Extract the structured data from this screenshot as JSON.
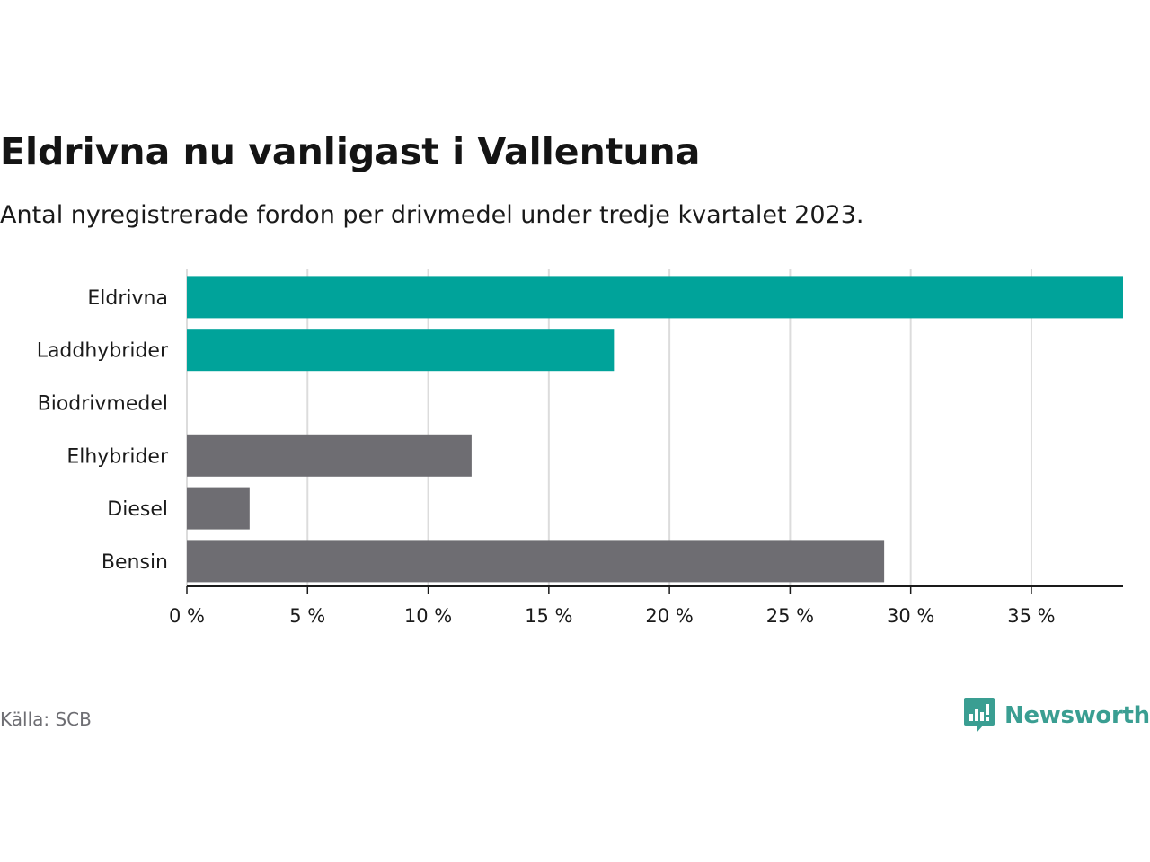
{
  "title": "Eldrivna nu vanligast i Vallentuna",
  "subtitle": "Antal nyregistrerade fordon per drivmedel under tredje kvartalet 2023.",
  "source": "Källa: SCB",
  "brand": "Newsworthy",
  "colors": {
    "highlight": "#00a39a",
    "muted": "#6e6d72",
    "grid": "#dcdcdc",
    "axis": "#1a1a1a",
    "brand": "#3a9e92"
  },
  "chart_data": {
    "type": "bar",
    "orientation": "horizontal",
    "categories": [
      "Eldrivna",
      "Laddhybrider",
      "Biodrivmedel",
      "Elhybrider",
      "Diesel",
      "Bensin"
    ],
    "values": [
      38.8,
      17.7,
      0,
      11.8,
      2.6,
      28.9
    ],
    "highlight": [
      true,
      true,
      true,
      false,
      false,
      false
    ],
    "xlim": [
      0,
      38.8
    ],
    "xticks": [
      0,
      5,
      10,
      15,
      20,
      25,
      30,
      35
    ],
    "xtick_labels": [
      "0 %",
      "5 %",
      "10 %",
      "15 %",
      "20 %",
      "25 %",
      "30 %",
      "35 %"
    ],
    "xlabel": "",
    "ylabel": "",
    "grid": true
  }
}
